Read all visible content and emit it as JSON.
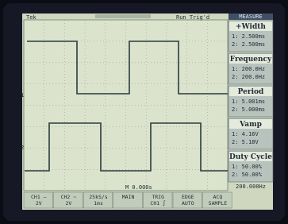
{
  "status": {
    "brand": "Tek",
    "state": "Run Trig'd",
    "menu": "MEASURE"
  },
  "channel_markers": [
    "1",
    "2"
  ],
  "trigger_time": "M 0.000s",
  "measurements": [
    {
      "title": "+Width",
      "ch1": "1: 2.500ms",
      "ch2": "2: 2.500ms"
    },
    {
      "title": "Frequency",
      "ch1": "1: 200.0Hz",
      "ch2": "2: 200.0Hz"
    },
    {
      "title": "Period",
      "ch1": "1: 5.001ms",
      "ch2": "2: 5.000ms"
    },
    {
      "title": "Vamp",
      "ch1": "1: 4.16V",
      "ch2": "2: 5.18V"
    },
    {
      "title": "Duty Cycle",
      "ch1": "1: 50.00%",
      "ch2": "2: 50.00%"
    }
  ],
  "trigger_frequency": "200.000Hz",
  "bottom_bar": [
    {
      "top": "CH1 —",
      "bottom": "2V"
    },
    {
      "top": "CH2 ~",
      "bottom": "2V"
    },
    {
      "top": "25kS/s",
      "bottom": "1ms"
    },
    {
      "top": "MAIN",
      "bottom": ""
    },
    {
      "top": "TRIG",
      "bottom": "CH1 ∫"
    },
    {
      "top": "EDGE",
      "bottom": "AUTO"
    },
    {
      "top": "ACQ",
      "bottom": "SAMPLE"
    }
  ]
}
